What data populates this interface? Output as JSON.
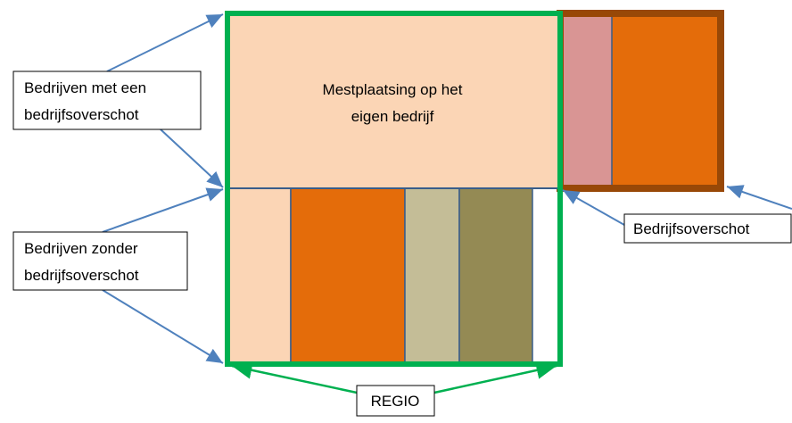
{
  "center_text": [
    "Mestplaatsing op het",
    "eigen bedrijf"
  ],
  "labels": {
    "with_surplus": [
      "Bedrijven met een",
      "bedrijfsoverschot"
    ],
    "without_surplus": [
      "Bedrijven zonder",
      "bedrijfsoverschot"
    ],
    "surplus": "Bedrijfsoverschot",
    "region": "REGIO"
  }
}
